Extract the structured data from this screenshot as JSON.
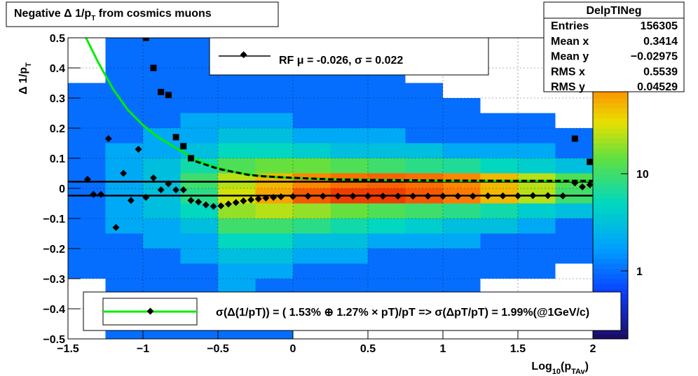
{
  "chart_data": {
    "type": "heatmap",
    "title": [
      "Negative Δ 1/p",
      "T",
      " from cosmics muons"
    ],
    "x_label": [
      "Log",
      "10",
      "(p",
      "TAv",
      ")"
    ],
    "y_label": [
      "Δ 1/p",
      "T"
    ],
    "xlim": [
      -1.5,
      2
    ],
    "ylim": [
      -0.5,
      0.5
    ],
    "xticks": [
      {
        "value": -1.5,
        "label": "−1.5"
      },
      {
        "value": -1,
        "label": "−1"
      },
      {
        "value": -0.5,
        "label": "−0.5"
      },
      0,
      0.5,
      1,
      1.5,
      2
    ],
    "yticks": [
      {
        "value": -0.5,
        "label": "−0.5"
      },
      {
        "value": -0.4,
        "label": "−0.4"
      },
      {
        "value": -0.3,
        "label": "−0.3"
      },
      {
        "value": -0.2,
        "label": "−0.2"
      },
      {
        "value": -0.1,
        "label": "−0.1"
      },
      0,
      0.1,
      0.2,
      0.3,
      0.4,
      0.5
    ],
    "grid": true,
    "zscale": "log",
    "zlim": [
      0.2,
      250
    ],
    "zticks": [
      1,
      10
    ],
    "xbins": [
      -1.5,
      -1.25,
      -1,
      -0.75,
      -0.5,
      -0.25,
      0,
      0.25,
      0.5,
      0.75,
      1,
      1.25,
      1.5,
      1.75,
      2
    ],
    "ybins": [
      -0.5,
      -0.45,
      -0.4,
      -0.35,
      -0.3,
      -0.25,
      -0.2,
      -0.15,
      -0.1,
      -0.05,
      0,
      0.05,
      0.1,
      0.15,
      0.2,
      0.25,
      0.3,
      0.35,
      0.4,
      0.45,
      0.5
    ],
    "z": [
      [
        0,
        0,
        0,
        0,
        1,
        1,
        1,
        1,
        1,
        1,
        1,
        1,
        1,
        1,
        1,
        1,
        1,
        0,
        0,
        0
      ],
      [
        1,
        1,
        1,
        1,
        1,
        1,
        1,
        2,
        2,
        2,
        2,
        2,
        2,
        1,
        1,
        1,
        1,
        1,
        1,
        1
      ],
      [
        1,
        1,
        1,
        1,
        1,
        1,
        2,
        2,
        3,
        3,
        3,
        3,
        2,
        2,
        1,
        1,
        1,
        1,
        1,
        1
      ],
      [
        1,
        1,
        1,
        1,
        1,
        2,
        2,
        3,
        5,
        8,
        10,
        6,
        3,
        2,
        2,
        1,
        1,
        1,
        1,
        1
      ],
      [
        1,
        1,
        1,
        2,
        2,
        3,
        5,
        10,
        20,
        30,
        25,
        12,
        5,
        3,
        2,
        1,
        1,
        1,
        1,
        1
      ],
      [
        1,
        1,
        1,
        1,
        2,
        3,
        5,
        10,
        25,
        60,
        50,
        15,
        5,
        3,
        2,
        1,
        1,
        1,
        1,
        1
      ],
      [
        0,
        1,
        1,
        1,
        1,
        2,
        3,
        8,
        20,
        120,
        80,
        15,
        4,
        2,
        1,
        1,
        1,
        1,
        1,
        0
      ],
      [
        0,
        0,
        1,
        1,
        1,
        2,
        3,
        6,
        15,
        150,
        100,
        12,
        3,
        2,
        1,
        1,
        1,
        1,
        0,
        0
      ],
      [
        0,
        0,
        1,
        1,
        1,
        1,
        2,
        5,
        12,
        150,
        110,
        10,
        3,
        2,
        1,
        1,
        1,
        1,
        0,
        0
      ],
      [
        0,
        0,
        0,
        1,
        1,
        1,
        2,
        4,
        10,
        120,
        100,
        8,
        3,
        1,
        1,
        1,
        1,
        0,
        0,
        0
      ],
      [
        0,
        0,
        0,
        1,
        1,
        1,
        2,
        3,
        8,
        90,
        80,
        7,
        2,
        1,
        1,
        1,
        0,
        0,
        0,
        0
      ],
      [
        0,
        0,
        0,
        0,
        1,
        1,
        1,
        3,
        6,
        50,
        50,
        5,
        2,
        1,
        1,
        0,
        0,
        0,
        0,
        0
      ],
      [
        0,
        0,
        0,
        0,
        1,
        1,
        1,
        2,
        4,
        25,
        25,
        4,
        2,
        1,
        1,
        0,
        0,
        0,
        0,
        0
      ],
      [
        0,
        0,
        0,
        0,
        0,
        1,
        1,
        1,
        3,
        10,
        12,
        3,
        1,
        1,
        0,
        0,
        0,
        0,
        0,
        0
      ]
    ],
    "hlines": [
      0.022,
      -0.024
    ],
    "mean": {
      "color": "#000000",
      "x": [
        -1.37,
        -1.33,
        -1.28,
        -1.23,
        -1.18,
        -1.13,
        -1.08,
        -1.03,
        -0.98,
        -0.93,
        -0.88,
        -0.83,
        -0.78,
        -0.73,
        -0.68,
        -0.63,
        -0.58,
        -0.53,
        -0.48,
        -0.43,
        -0.38,
        -0.33,
        -0.28,
        -0.23,
        -0.18,
        -0.13,
        -0.08,
        0,
        0.1,
        0.2,
        0.3,
        0.4,
        0.5,
        0.6,
        0.7,
        0.8,
        0.9,
        1,
        1.1,
        1.2,
        1.3,
        1.4,
        1.5,
        1.6,
        1.7,
        1.8,
        1.88,
        1.93,
        1.98
      ],
      "y": [
        0.03,
        -0.02,
        -0.02,
        0.165,
        -0.13,
        0.05,
        -0.04,
        0.13,
        -0.03,
        0.035,
        -0.005,
        0.015,
        -0.005,
        -0.005,
        -0.04,
        -0.045,
        -0.055,
        -0.06,
        -0.058,
        -0.052,
        -0.047,
        -0.042,
        -0.038,
        -0.035,
        -0.032,
        -0.03,
        -0.028,
        -0.027,
        -0.026,
        -0.026,
        -0.026,
        -0.026,
        -0.026,
        -0.026,
        -0.026,
        -0.026,
        -0.026,
        -0.026,
        -0.026,
        -0.026,
        -0.025,
        -0.025,
        -0.025,
        -0.024,
        -0.024,
        -0.025,
        0.018,
        0.005,
        0.012
      ]
    },
    "sigma": {
      "color": "#000000",
      "x": [
        -0.98,
        -0.93,
        -0.88,
        -0.83,
        -0.78,
        -0.73,
        -0.68,
        1.88,
        1.98
      ],
      "y": [
        0.5,
        0.4,
        0.32,
        0.31,
        0.17,
        0.14,
        0.1,
        0.165,
        0.088
      ]
    },
    "sigma_line": {
      "color": "#000000",
      "x": [
        -0.65,
        -0.5,
        -0.4,
        -0.3,
        -0.2,
        0,
        0.25,
        0.5,
        1,
        1.5,
        1.85,
        2
      ],
      "y": [
        0.09,
        0.065,
        0.055,
        0.045,
        0.04,
        0.035,
        0.03,
        0.028,
        0.026,
        0.025,
        0.025,
        0.025
      ]
    },
    "fit": {
      "color": "#00ee00",
      "x": [
        -1.38,
        -1.3,
        -1.2,
        -1.1,
        -1,
        -0.9,
        -0.8,
        -0.7,
        -0.6,
        -0.5,
        -0.4,
        -0.3,
        -0.2,
        -0.1,
        0,
        0.25,
        0.5,
        1,
        1.5,
        2
      ],
      "y": [
        0.5,
        0.42,
        0.33,
        0.26,
        0.21,
        0.17,
        0.14,
        0.11,
        0.085,
        0.068,
        0.055,
        0.047,
        0.041,
        0.037,
        0.034,
        0.03,
        0.028,
        0.025,
        0.025,
        0.025
      ]
    },
    "legend_top": "RF μ = -0.026, σ =   0.022",
    "legend_bottom": "σ(Δ(1/pT)) = ( 1.53% ⊕  1.27% × pT)/pT => σ(ΔpT/pT) =  1.99%(@1GeV/c)",
    "stats": {
      "name": "DelpTINeg",
      "rows": [
        [
          "Entries",
          "156305"
        ],
        [
          "Mean x",
          "0.3414"
        ],
        [
          "Mean y",
          "−0.02975"
        ],
        [
          "RMS x",
          "0.5539"
        ],
        [
          "RMS y",
          "0.04529"
        ]
      ]
    }
  }
}
